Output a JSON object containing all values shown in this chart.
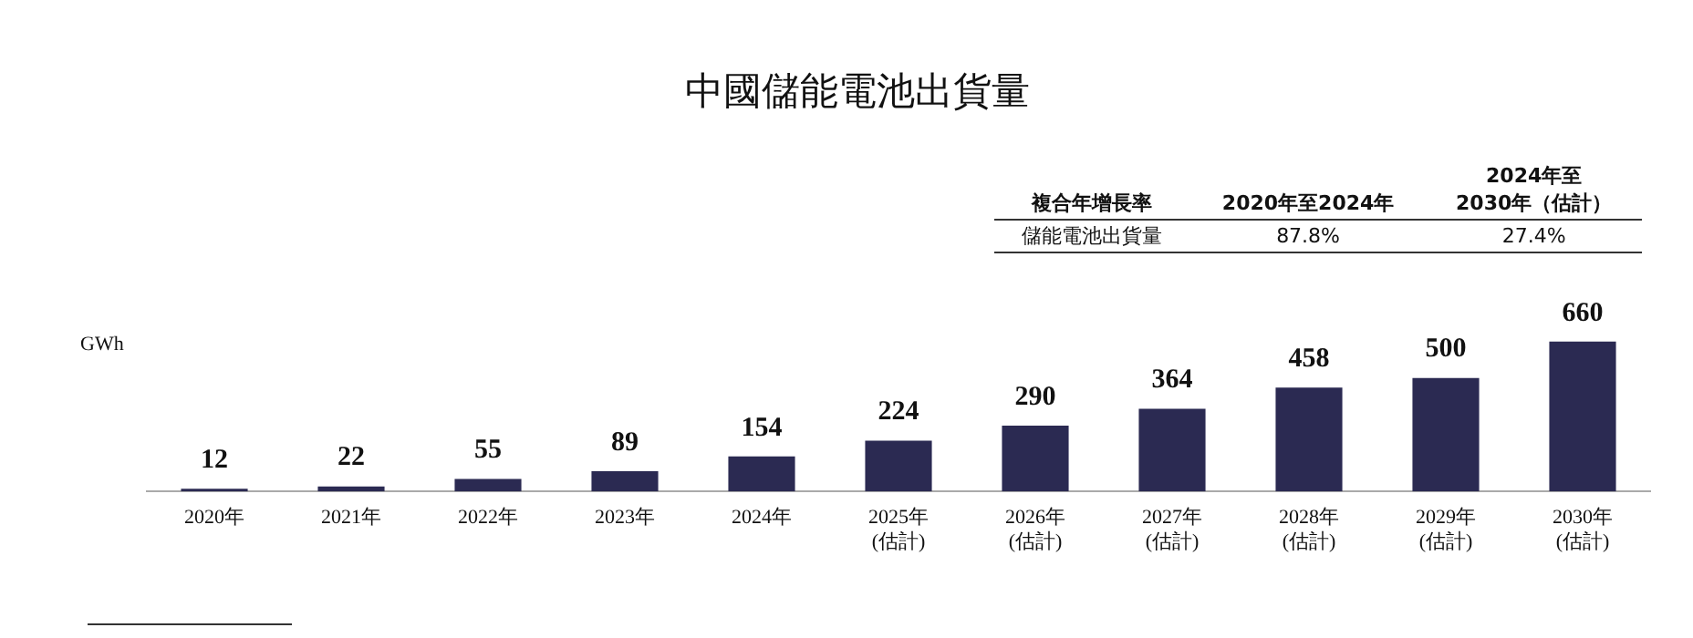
{
  "chart_data": {
    "type": "bar",
    "title": "中國儲能電池出貨量",
    "ylabel": "GWh",
    "categories": [
      "2020年",
      "2021年",
      "2022年",
      "2023年",
      "2024年",
      "2025年\n(估計)",
      "2026年\n(估計)",
      "2027年\n(估計)",
      "2028年\n(估計)",
      "2029年\n(估計)",
      "2030年\n(估計)"
    ],
    "values": [
      12,
      22,
      55,
      89,
      154,
      224,
      290,
      364,
      458,
      500,
      660
    ],
    "color": "#2b2a52",
    "data_labels": true,
    "grid": false,
    "legend": false,
    "tick_labels": "x",
    "annotations": [
      "複合年增長率",
      "2020年至2024年",
      "2024年至\n2030年（估計）",
      "儲能電池出貨量",
      "87.8%",
      "27.4%"
    ]
  }
}
